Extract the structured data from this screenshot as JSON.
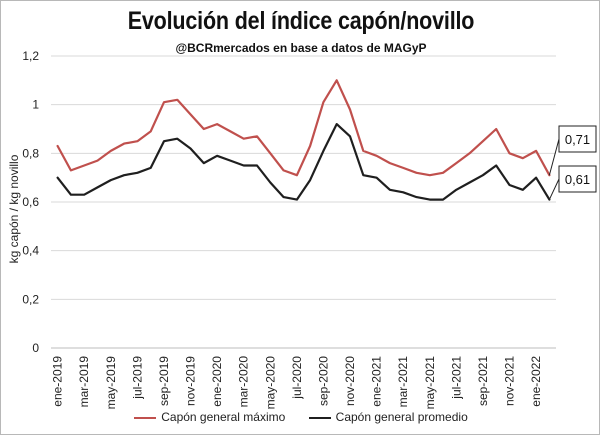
{
  "chart_data": {
    "type": "line",
    "title": "Evolución del índice capón/novillo",
    "subtitle": "@BCRmercados en base a datos de MAGyP",
    "ylabel": "kg capón / kg novillo",
    "xlabel": "",
    "ylim": [
      0,
      1.2
    ],
    "y_ticks": [
      "0",
      "0,2",
      "0,4",
      "0,6",
      "0,8",
      "1",
      "1,2"
    ],
    "x": [
      "ene-2019",
      "feb-2019",
      "mar-2019",
      "abr-2019",
      "may-2019",
      "jun-2019",
      "jul-2019",
      "ago-2019",
      "sep-2019",
      "oct-2019",
      "nov-2019",
      "dic-2019",
      "ene-2020",
      "feb-2020",
      "mar-2020",
      "abr-2020",
      "may-2020",
      "jun-2020",
      "jul-2020",
      "ago-2020",
      "sep-2020",
      "oct-2020",
      "nov-2020",
      "dic-2020",
      "ene-2021",
      "feb-2021",
      "mar-2021",
      "abr-2021",
      "may-2021",
      "jun-2021",
      "jul-2021",
      "ago-2021",
      "sep-2021",
      "oct-2021",
      "nov-2021",
      "dic-2021",
      "ene-2022",
      "feb-2022"
    ],
    "x_tick_labels": [
      "ene-2019",
      "mar-2019",
      "may-2019",
      "jul-2019",
      "sep-2019",
      "nov-2019",
      "ene-2020",
      "mar-2020",
      "may-2020",
      "jul-2020",
      "sep-2020",
      "nov-2020",
      "ene-2021",
      "mar-2021",
      "may-2021",
      "jul-2021",
      "sep-2021",
      "nov-2021",
      "ene-2022"
    ],
    "grid": true,
    "legend_position": "bottom",
    "series": [
      {
        "name": "Capón general máximo",
        "color": "#c0504d",
        "values": [
          0.83,
          0.73,
          0.75,
          0.77,
          0.81,
          0.84,
          0.85,
          0.89,
          1.01,
          1.02,
          0.96,
          0.9,
          0.92,
          0.89,
          0.86,
          0.87,
          0.8,
          0.73,
          0.71,
          0.83,
          1.01,
          1.1,
          0.98,
          0.81,
          0.79,
          0.76,
          0.74,
          0.72,
          0.71,
          0.72,
          0.76,
          0.8,
          0.85,
          0.9,
          0.8,
          0.78,
          0.81,
          0.71
        ]
      },
      {
        "name": "Capón general promedio",
        "color": "#1f1f1f",
        "values": [
          0.7,
          0.63,
          0.63,
          0.66,
          0.69,
          0.71,
          0.72,
          0.74,
          0.85,
          0.86,
          0.82,
          0.76,
          0.79,
          0.77,
          0.75,
          0.75,
          0.68,
          0.62,
          0.61,
          0.69,
          0.81,
          0.92,
          0.87,
          0.71,
          0.7,
          0.65,
          0.64,
          0.62,
          0.61,
          0.61,
          0.65,
          0.68,
          0.71,
          0.75,
          0.67,
          0.65,
          0.7,
          0.61
        ]
      }
    ],
    "annotations": [
      {
        "text": "0,71",
        "series": 0
      },
      {
        "text": "0,61",
        "series": 1
      }
    ]
  }
}
